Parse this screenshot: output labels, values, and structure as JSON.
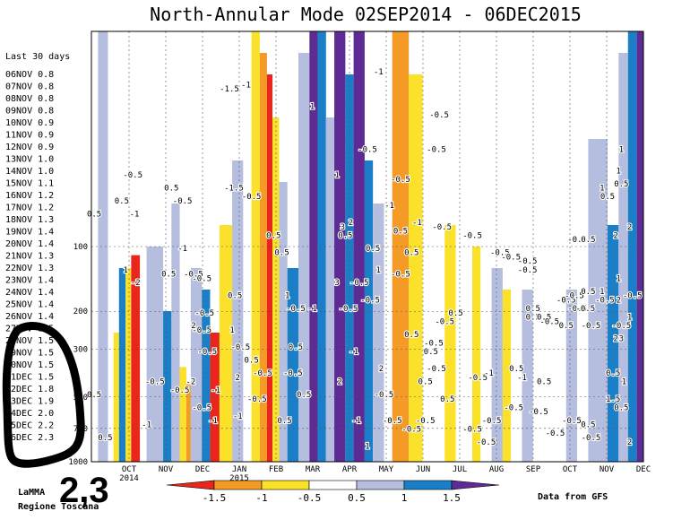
{
  "chart_data": {
    "type": "heatmap",
    "title": "North-Annular Mode 02SEP2014 - 06DEC2015",
    "x_start_label": "OCT 2014",
    "x_tick_labels": [
      "OCT",
      "NOV",
      "DEC",
      "JAN",
      "FEB",
      "MAR",
      "APR",
      "MAY",
      "JUN",
      "JUL",
      "AUG",
      "SEP",
      "OCT",
      "NOV",
      "DEC"
    ],
    "x_year_labels": [
      "2014",
      "2015"
    ],
    "y_tick_labels": [
      "100",
      "200",
      "300",
      "500",
      "700",
      "1000"
    ],
    "y_scale": "log-pressure",
    "color_levels": [
      -1.5,
      -1,
      -0.5,
      0.5,
      1,
      1.5
    ],
    "colorbar_labels": [
      "-1.5",
      "-1",
      "-0.5",
      "0.5",
      "1",
      "1.5"
    ],
    "colors": {
      "lt_-1.5": "#e8261c",
      "-1.5_-1": "#f39a27",
      "-1_-0.5": "#fbe12a",
      "-0.5_0.5": "#ffffff",
      "0.5_1": "#b6bedf",
      "1_1.5": "#1b7fc8",
      "gt_1.5": "#5e2a94"
    },
    "side_panel_title": "Last 30 days",
    "side_panel_values": [
      {
        "date": "06NOV",
        "value": 0.8
      },
      {
        "date": "07NOV",
        "value": 0.8
      },
      {
        "date": "08NOV",
        "value": 0.8
      },
      {
        "date": "09NOV",
        "value": 0.8
      },
      {
        "date": "10NOV",
        "value": 0.9
      },
      {
        "date": "11NOV",
        "value": 0.9
      },
      {
        "date": "12NOV",
        "value": 0.9
      },
      {
        "date": "13NOV",
        "value": 1.0
      },
      {
        "date": "14NOV",
        "value": 1.0
      },
      {
        "date": "15NOV",
        "value": 1.1
      },
      {
        "date": "16NOV",
        "value": 1.2
      },
      {
        "date": "17NOV",
        "value": 1.2
      },
      {
        "date": "18NOV",
        "value": 1.3
      },
      {
        "date": "19NOV",
        "value": 1.4
      },
      {
        "date": "20NOV",
        "value": 1.4
      },
      {
        "date": "21NOV",
        "value": 1.3
      },
      {
        "date": "22NOV",
        "value": 1.3
      },
      {
        "date": "23NOV",
        "value": 1.4
      },
      {
        "date": "24NOV",
        "value": 1.4
      },
      {
        "date": "25NOV",
        "value": 1.4
      },
      {
        "date": "26NOV",
        "value": 1.4
      },
      {
        "date": "27NOV",
        "value": 1.5
      },
      {
        "date": "28NOV",
        "value": 1.5
      },
      {
        "date": "29NOV",
        "value": 1.5
      },
      {
        "date": "30NOV",
        "value": 1.5
      },
      {
        "date": "01DEC",
        "value": 1.5
      },
      {
        "date": "02DEC",
        "value": 1.8
      },
      {
        "date": "03DEC",
        "value": 1.9
      },
      {
        "date": "04DEC",
        "value": 2.0
      },
      {
        "date": "05DEC",
        "value": 2.2
      },
      {
        "date": "06DEC",
        "value": 2.3
      }
    ],
    "annotation": "2,3",
    "credit_left": [
      "LaMMA",
      "Regione Toscana"
    ],
    "credit_right": "Data from GFS",
    "bands": [
      {
        "x0": 0.0,
        "x1": 0.012,
        "c": "-0.5_0.5"
      },
      {
        "x0": 0.012,
        "x1": 0.03,
        "c": "0.5_1"
      },
      {
        "x0": 0.03,
        "x1": 0.04,
        "c": "-0.5_0.5"
      },
      {
        "x0": 0.04,
        "x1": 0.05,
        "c": "-1_-0.5",
        "ytop": 0.7
      },
      {
        "x0": 0.05,
        "x1": 0.062,
        "c": "1_1.5",
        "ytop": 0.55
      },
      {
        "x0": 0.062,
        "x1": 0.072,
        "c": "-1_-0.5",
        "ytop": 0.55
      },
      {
        "x0": 0.072,
        "x1": 0.088,
        "c": "lt_-1.5",
        "ytop": 0.52
      },
      {
        "x0": 0.088,
        "x1": 0.1,
        "c": "-0.5_0.5"
      },
      {
        "x0": 0.1,
        "x1": 0.13,
        "c": "0.5_1",
        "ytop": 0.5
      },
      {
        "x0": 0.13,
        "x1": 0.145,
        "c": "1_1.5",
        "ytop": 0.65
      },
      {
        "x0": 0.145,
        "x1": 0.16,
        "c": "0.5_1",
        "ytop": 0.4
      },
      {
        "x0": 0.16,
        "x1": 0.172,
        "c": "-1_-0.5",
        "ytop": 0.78
      },
      {
        "x0": 0.172,
        "x1": 0.18,
        "c": "-1.5_-1",
        "ytop": 0.82
      },
      {
        "x0": 0.18,
        "x1": 0.2,
        "c": "0.5_1",
        "ytop": 0.55
      },
      {
        "x0": 0.2,
        "x1": 0.215,
        "c": "1_1.5",
        "ytop": 0.6
      },
      {
        "x0": 0.215,
        "x1": 0.232,
        "c": "lt_-1.5",
        "ytop": 0.7
      },
      {
        "x0": 0.232,
        "x1": 0.255,
        "c": "-1_-0.5",
        "ytop": 0.45
      },
      {
        "x0": 0.255,
        "x1": 0.275,
        "c": "0.5_1",
        "ytop": 0.3
      },
      {
        "x0": 0.275,
        "x1": 0.29,
        "c": "-0.5_0.5"
      },
      {
        "x0": 0.29,
        "x1": 0.305,
        "c": "-1_-0.5",
        "ytop": 0.0
      },
      {
        "x0": 0.305,
        "x1": 0.318,
        "c": "-1.5_-1",
        "ytop": 0.05
      },
      {
        "x0": 0.318,
        "x1": 0.328,
        "c": "lt_-1.5",
        "ytop": 0.1
      },
      {
        "x0": 0.328,
        "x1": 0.34,
        "c": "-1_-0.5",
        "ytop": 0.2
      },
      {
        "x0": 0.34,
        "x1": 0.355,
        "c": "0.5_1",
        "ytop": 0.35
      },
      {
        "x0": 0.355,
        "x1": 0.375,
        "c": "1_1.5",
        "ytop": 0.55
      },
      {
        "x0": 0.375,
        "x1": 0.395,
        "c": "0.5_1",
        "ytop": 0.05
      },
      {
        "x0": 0.395,
        "x1": 0.41,
        "c": "gt_1.5",
        "ytop": 0.0
      },
      {
        "x0": 0.41,
        "x1": 0.425,
        "c": "1_1.5",
        "ytop": 0.0
      },
      {
        "x0": 0.425,
        "x1": 0.44,
        "c": "0.5_1",
        "ytop": 0.2
      },
      {
        "x0": 0.44,
        "x1": 0.46,
        "c": "gt_1.5",
        "ytop": 0.0
      },
      {
        "x0": 0.46,
        "x1": 0.475,
        "c": "1_1.5",
        "ytop": 0.1
      },
      {
        "x0": 0.475,
        "x1": 0.495,
        "c": "gt_1.5",
        "ytop": 0.0
      },
      {
        "x0": 0.495,
        "x1": 0.51,
        "c": "1_1.5",
        "ytop": 0.3
      },
      {
        "x0": 0.51,
        "x1": 0.53,
        "c": "0.5_1",
        "ytop": 0.4
      },
      {
        "x0": 0.53,
        "x1": 0.545,
        "c": "-0.5_0.5"
      },
      {
        "x0": 0.545,
        "x1": 0.575,
        "c": "-1.5_-1",
        "ytop": 0.0
      },
      {
        "x0": 0.575,
        "x1": 0.6,
        "c": "-1_-0.5",
        "ytop": 0.1
      },
      {
        "x0": 0.6,
        "x1": 0.64,
        "c": "-0.5_0.5"
      },
      {
        "x0": 0.64,
        "x1": 0.66,
        "c": "-1_-0.5",
        "ytop": 0.45
      },
      {
        "x0": 0.66,
        "x1": 0.69,
        "c": "-0.5_0.5"
      },
      {
        "x0": 0.69,
        "x1": 0.705,
        "c": "-1_-0.5",
        "ytop": 0.5
      },
      {
        "x0": 0.705,
        "x1": 0.725,
        "c": "-0.5_0.5"
      },
      {
        "x0": 0.725,
        "x1": 0.745,
        "c": "0.5_1",
        "ytop": 0.55
      },
      {
        "x0": 0.745,
        "x1": 0.76,
        "c": "-1_-0.5",
        "ytop": 0.6
      },
      {
        "x0": 0.76,
        "x1": 0.78,
        "c": "-0.5_0.5"
      },
      {
        "x0": 0.78,
        "x1": 0.8,
        "c": "0.5_1",
        "ytop": 0.6
      },
      {
        "x0": 0.8,
        "x1": 0.86,
        "c": "-0.5_0.5"
      },
      {
        "x0": 0.86,
        "x1": 0.88,
        "c": "0.5_1",
        "ytop": 0.6
      },
      {
        "x0": 0.88,
        "x1": 0.9,
        "c": "-0.5_0.5"
      },
      {
        "x0": 0.9,
        "x1": 0.935,
        "c": "0.5_1",
        "ytop": 0.25
      },
      {
        "x0": 0.935,
        "x1": 0.955,
        "c": "1_1.5",
        "ytop": 0.45
      },
      {
        "x0": 0.955,
        "x1": 0.972,
        "c": "0.5_1",
        "ytop": 0.05
      },
      {
        "x0": 0.972,
        "x1": 0.988,
        "c": "1_1.5",
        "ytop": 0.0
      },
      {
        "x0": 0.988,
        "x1": 1.0,
        "c": "gt_1.5",
        "ytop": 0.0
      }
    ],
    "contour_labels": [
      {
        "x": 0.005,
        "y": 0.43,
        "t": "0.5"
      },
      {
        "x": 0.055,
        "y": 0.4,
        "t": "0.5"
      },
      {
        "x": 0.075,
        "y": 0.34,
        "t": "-0.5"
      },
      {
        "x": 0.078,
        "y": 0.43,
        "t": "-1"
      },
      {
        "x": 0.062,
        "y": 0.56,
        "t": "1"
      },
      {
        "x": 0.08,
        "y": 0.59,
        "t": "-2"
      },
      {
        "x": 0.145,
        "y": 0.37,
        "t": "0.5"
      },
      {
        "x": 0.165,
        "y": 0.4,
        "t": "-0.5"
      },
      {
        "x": 0.14,
        "y": 0.57,
        "t": "0.5"
      },
      {
        "x": 0.165,
        "y": 0.51,
        "t": "-1"
      },
      {
        "x": 0.185,
        "y": 0.57,
        "t": "-0.5"
      },
      {
        "x": 0.2,
        "y": 0.58,
        "t": "-0.5"
      },
      {
        "x": 0.205,
        "y": 0.66,
        "t": "-0.5"
      },
      {
        "x": 0.185,
        "y": 0.69,
        "t": "2"
      },
      {
        "x": 0.2,
        "y": 0.7,
        "t": "-0.5"
      },
      {
        "x": 0.21,
        "y": 0.75,
        "t": "-0.5"
      },
      {
        "x": 0.18,
        "y": 0.82,
        "t": "-2"
      },
      {
        "x": 0.16,
        "y": 0.84,
        "t": "-0.5"
      },
      {
        "x": 0.2,
        "y": 0.88,
        "t": "-0.5"
      },
      {
        "x": 0.225,
        "y": 0.84,
        "t": "-1"
      },
      {
        "x": 0.22,
        "y": 0.91,
        "t": "-1"
      },
      {
        "x": 0.115,
        "y": 0.82,
        "t": "-0.5"
      },
      {
        "x": 0.1,
        "y": 0.92,
        "t": "-1"
      },
      {
        "x": 0.005,
        "y": 0.85,
        "t": "0.5"
      },
      {
        "x": 0.025,
        "y": 0.95,
        "t": "0.5"
      },
      {
        "x": 0.25,
        "y": 0.14,
        "t": "-1.5"
      },
      {
        "x": 0.28,
        "y": 0.13,
        "t": "-1"
      },
      {
        "x": 0.258,
        "y": 0.37,
        "t": "-1.5"
      },
      {
        "x": 0.29,
        "y": 0.39,
        "t": "-0.5"
      },
      {
        "x": 0.26,
        "y": 0.62,
        "t": "0.5"
      },
      {
        "x": 0.255,
        "y": 0.7,
        "t": "1"
      },
      {
        "x": 0.27,
        "y": 0.74,
        "t": "-0.5"
      },
      {
        "x": 0.265,
        "y": 0.81,
        "t": "2"
      },
      {
        "x": 0.29,
        "y": 0.77,
        "t": "0.5"
      },
      {
        "x": 0.3,
        "y": 0.86,
        "t": "-0.5"
      },
      {
        "x": 0.31,
        "y": 0.8,
        "t": "-0.5"
      },
      {
        "x": 0.265,
        "y": 0.9,
        "t": "-1"
      },
      {
        "x": 0.33,
        "y": 0.48,
        "t": "0.5"
      },
      {
        "x": 0.345,
        "y": 0.52,
        "t": "0.5"
      },
      {
        "x": 0.355,
        "y": 0.62,
        "t": "1"
      },
      {
        "x": 0.37,
        "y": 0.65,
        "t": "-0.5"
      },
      {
        "x": 0.37,
        "y": 0.74,
        "t": "0.5"
      },
      {
        "x": 0.365,
        "y": 0.8,
        "t": "-0.5"
      },
      {
        "x": 0.35,
        "y": 0.91,
        "t": "0.5"
      },
      {
        "x": 0.4,
        "y": 0.65,
        "t": "-1"
      },
      {
        "x": 0.385,
        "y": 0.85,
        "t": "0.5"
      },
      {
        "x": 0.4,
        "y": 0.18,
        "t": "1"
      },
      {
        "x": 0.445,
        "y": 0.34,
        "t": "1"
      },
      {
        "x": 0.455,
        "y": 0.46,
        "t": "3"
      },
      {
        "x": 0.46,
        "y": 0.48,
        "t": "0.5"
      },
      {
        "x": 0.47,
        "y": 0.45,
        "t": "2"
      },
      {
        "x": 0.445,
        "y": 0.59,
        "t": "3"
      },
      {
        "x": 0.465,
        "y": 0.65,
        "t": "-0.5"
      },
      {
        "x": 0.475,
        "y": 0.75,
        "t": "-1"
      },
      {
        "x": 0.45,
        "y": 0.82,
        "t": "2"
      },
      {
        "x": 0.48,
        "y": 0.91,
        "t": "-1"
      },
      {
        "x": 0.485,
        "y": 0.59,
        "t": "-0.5"
      },
      {
        "x": 0.5,
        "y": 0.28,
        "t": "-0.5"
      },
      {
        "x": 0.52,
        "y": 0.1,
        "t": "-1"
      },
      {
        "x": 0.52,
        "y": 0.56,
        "t": "1"
      },
      {
        "x": 0.505,
        "y": 0.63,
        "t": "-0.5"
      },
      {
        "x": 0.51,
        "y": 0.51,
        "t": "0.5"
      },
      {
        "x": 0.53,
        "y": 0.85,
        "t": "-0.5"
      },
      {
        "x": 0.525,
        "y": 0.79,
        "t": "2"
      },
      {
        "x": 0.5,
        "y": 0.97,
        "t": "1"
      },
      {
        "x": 0.56,
        "y": 0.35,
        "t": "-0.5"
      },
      {
        "x": 0.54,
        "y": 0.41,
        "t": "-1"
      },
      {
        "x": 0.56,
        "y": 0.47,
        "t": "0.5"
      },
      {
        "x": 0.58,
        "y": 0.52,
        "t": "0.5"
      },
      {
        "x": 0.59,
        "y": 0.45,
        "t": "-1"
      },
      {
        "x": 0.56,
        "y": 0.57,
        "t": "-0.5"
      },
      {
        "x": 0.58,
        "y": 0.71,
        "t": "0.5"
      },
      {
        "x": 0.58,
        "y": 0.93,
        "t": "-0.5"
      },
      {
        "x": 0.615,
        "y": 0.75,
        "t": "0.5"
      },
      {
        "x": 0.605,
        "y": 0.82,
        "t": "0.5"
      },
      {
        "x": 0.62,
        "y": 0.73,
        "t": "-0.5"
      },
      {
        "x": 0.625,
        "y": 0.79,
        "t": "-0.5"
      },
      {
        "x": 0.605,
        "y": 0.91,
        "t": "-0.5"
      },
      {
        "x": 0.545,
        "y": 0.91,
        "t": "-0.5"
      },
      {
        "x": 0.63,
        "y": 0.2,
        "t": "-0.5"
      },
      {
        "x": 0.625,
        "y": 0.28,
        "t": "-0.5"
      },
      {
        "x": 0.635,
        "y": 0.46,
        "t": "-0.5"
      },
      {
        "x": 0.66,
        "y": 0.66,
        "t": "0.5"
      },
      {
        "x": 0.64,
        "y": 0.68,
        "t": "-0.5"
      },
      {
        "x": 0.645,
        "y": 0.86,
        "t": "0.5"
      },
      {
        "x": 0.69,
        "y": 0.48,
        "t": "-0.5"
      },
      {
        "x": 0.7,
        "y": 0.81,
        "t": "-0.5"
      },
      {
        "x": 0.69,
        "y": 0.93,
        "t": "-0.5"
      },
      {
        "x": 0.72,
        "y": 0.8,
        "t": "-1"
      },
      {
        "x": 0.725,
        "y": 0.91,
        "t": "-0.5"
      },
      {
        "x": 0.715,
        "y": 0.96,
        "t": "-0.5"
      },
      {
        "x": 0.74,
        "y": 0.52,
        "t": "-0.5"
      },
      {
        "x": 0.76,
        "y": 0.53,
        "t": "-0.5"
      },
      {
        "x": 0.765,
        "y": 0.88,
        "t": "-0.5"
      },
      {
        "x": 0.78,
        "y": 0.81,
        "t": "-1"
      },
      {
        "x": 0.79,
        "y": 0.54,
        "t": "-0.5"
      },
      {
        "x": 0.79,
        "y": 0.56,
        "t": "-0.5"
      },
      {
        "x": 0.77,
        "y": 0.79,
        "t": "0.5"
      },
      {
        "x": 0.8,
        "y": 0.65,
        "t": "0.5"
      },
      {
        "x": 0.8,
        "y": 0.67,
        "t": "0.5"
      },
      {
        "x": 0.82,
        "y": 0.67,
        "t": "0.5"
      },
      {
        "x": 0.83,
        "y": 0.68,
        "t": "-0.5"
      },
      {
        "x": 0.81,
        "y": 0.89,
        "t": "-0.5"
      },
      {
        "x": 0.82,
        "y": 0.82,
        "t": "0.5"
      },
      {
        "x": 0.84,
        "y": 0.94,
        "t": "-0.5"
      },
      {
        "x": 0.86,
        "y": 0.63,
        "t": "-0.5"
      },
      {
        "x": 0.86,
        "y": 0.69,
        "t": "0.5"
      },
      {
        "x": 0.87,
        "y": 0.91,
        "t": "-0.5"
      },
      {
        "x": 0.875,
        "y": 0.62,
        "t": "-0.5"
      },
      {
        "x": 0.88,
        "y": 0.65,
        "t": "-0.5"
      },
      {
        "x": 0.895,
        "y": 0.65,
        "t": "-0.5"
      },
      {
        "x": 0.905,
        "y": 0.69,
        "t": "-0.5"
      },
      {
        "x": 0.88,
        "y": 0.49,
        "t": "-0.5"
      },
      {
        "x": 0.9,
        "y": 0.49,
        "t": "0.5"
      },
      {
        "x": 0.9,
        "y": 0.61,
        "t": "0.5"
      },
      {
        "x": 0.925,
        "y": 0.61,
        "t": "1"
      },
      {
        "x": 0.93,
        "y": 0.63,
        "t": "-0.5"
      },
      {
        "x": 0.925,
        "y": 0.37,
        "t": "1"
      },
      {
        "x": 0.935,
        "y": 0.39,
        "t": "0.5"
      },
      {
        "x": 0.955,
        "y": 0.33,
        "t": "1"
      },
      {
        "x": 0.96,
        "y": 0.36,
        "t": "0.5"
      },
      {
        "x": 0.96,
        "y": 0.28,
        "t": "1"
      },
      {
        "x": 0.95,
        "y": 0.48,
        "t": "2"
      },
      {
        "x": 0.975,
        "y": 0.46,
        "t": "2"
      },
      {
        "x": 0.955,
        "y": 0.58,
        "t": "1"
      },
      {
        "x": 0.955,
        "y": 0.63,
        "t": "2"
      },
      {
        "x": 0.96,
        "y": 0.69,
        "t": "-0.5"
      },
      {
        "x": 0.975,
        "y": 0.67,
        "t": "1"
      },
      {
        "x": 0.96,
        "y": 0.72,
        "t": "3"
      },
      {
        "x": 0.95,
        "y": 0.72,
        "t": "2"
      },
      {
        "x": 0.945,
        "y": 0.8,
        "t": "0.5"
      },
      {
        "x": 0.965,
        "y": 0.82,
        "t": "1"
      },
      {
        "x": 0.945,
        "y": 0.86,
        "t": "1.5"
      },
      {
        "x": 0.96,
        "y": 0.88,
        "t": "0.5"
      },
      {
        "x": 0.975,
        "y": 0.96,
        "t": "2"
      },
      {
        "x": 0.98,
        "y": 0.62,
        "t": "-0.5"
      },
      {
        "x": 0.9,
        "y": 0.92,
        "t": "0.5"
      },
      {
        "x": 0.905,
        "y": 0.95,
        "t": "-0.5"
      }
    ]
  }
}
